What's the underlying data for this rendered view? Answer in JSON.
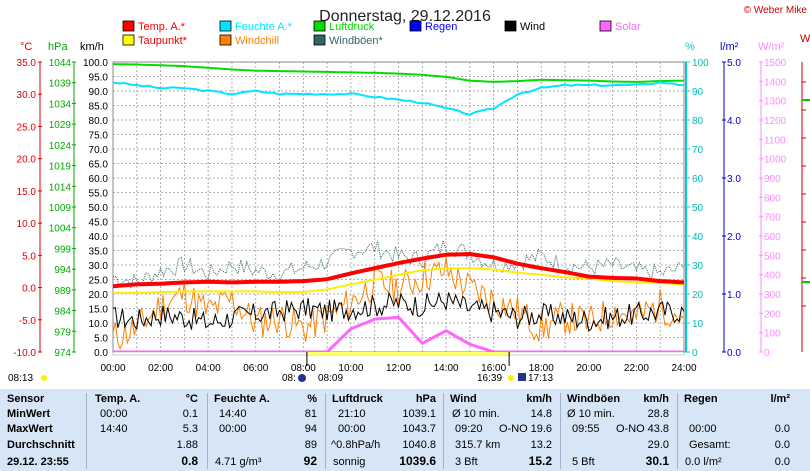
{
  "header": {
    "title": "Donnerstag, 29.12.2016",
    "credit": "© Weber Mike"
  },
  "legend": [
    {
      "label": "Temp. A.*",
      "color": "#ff0000"
    },
    {
      "label": "Feuchte A.*",
      "color": "#00e5ff"
    },
    {
      "label": "Luftdruck",
      "color": "#00dd00"
    },
    {
      "label": "Regen",
      "color": "#0000ff"
    },
    {
      "label": "Wind",
      "color": "#000000"
    },
    {
      "label": "Solar",
      "color": "#ff66ff"
    },
    {
      "label": "Taupunkt*",
      "color": "#ffff00"
    },
    {
      "label": "Windchill",
      "color": "#ff8000"
    },
    {
      "label": "Windböen*",
      "color": "#336666"
    }
  ],
  "units": {
    "temp": "°C",
    "pressure": "hPa",
    "wind": "km/h",
    "humidity": "%",
    "rain": "l/m²",
    "solar": "W/m²",
    "cut": "W"
  },
  "axes": {
    "temp_ticks": [
      "35.0",
      "30.0",
      "25.0",
      "20.0",
      "15.0",
      "10.0",
      "5.0",
      "0.0",
      "-5.0",
      "-10.0"
    ],
    "pressure_ticks": [
      "1044",
      "1039",
      "1034",
      "1029",
      "1024",
      "1019",
      "1014",
      "1009",
      "1004",
      "999",
      "994",
      "989",
      "984",
      "979",
      "974"
    ],
    "wind_ticks": [
      "100.0",
      "95.0",
      "90.0",
      "85.0",
      "80.0",
      "75.0",
      "70.0",
      "65.0",
      "60.0",
      "55.0",
      "50.0",
      "45.0",
      "40.0",
      "35.0",
      "30.0",
      "25.0",
      "20.0",
      "15.0",
      "10.0",
      "5.0",
      "0.0"
    ],
    "humidity_ticks": [
      "100",
      "90",
      "80",
      "70",
      "60",
      "50",
      "40",
      "30",
      "20",
      "10",
      "0"
    ],
    "rain_ticks": [
      "5.0",
      "4.0",
      "3.0",
      "2.0",
      "1.0",
      "0.0"
    ],
    "solar_ticks": [
      "1500",
      "1400",
      "1300",
      "1200",
      "1100",
      "1000",
      "900",
      "800",
      "700",
      "600",
      "500",
      "400",
      "300",
      "200",
      "100",
      "0"
    ],
    "time_ticks": [
      "00:00",
      "02:00",
      "04:00",
      "06:00",
      "08:00",
      "10:00",
      "12:00",
      "14:00",
      "16:00",
      "18:00",
      "20:00",
      "22:00",
      "24:00"
    ]
  },
  "sun": {
    "sunrise": "08:13",
    "sunset": "16:39",
    "moonrise": "08:09",
    "moonset": "17:13",
    "moonrise_prefix": "08:"
  },
  "chart_data": {
    "type": "line",
    "x_hours": [
      0,
      1,
      2,
      3,
      4,
      5,
      6,
      7,
      8,
      9,
      10,
      11,
      12,
      13,
      14,
      15,
      16,
      17,
      18,
      19,
      20,
      21,
      22,
      23,
      24
    ],
    "x_range": [
      0,
      24
    ],
    "series": [
      {
        "name": "Temp. A.*",
        "unit": "°C",
        "color": "#ff0000",
        "values": [
          0.2,
          0.5,
          0.6,
          0.8,
          0.9,
          0.8,
          0.9,
          0.9,
          1.0,
          1.3,
          2.2,
          3.0,
          3.8,
          4.5,
          5.1,
          5.2,
          4.7,
          3.7,
          3.0,
          2.4,
          1.7,
          1.5,
          1.4,
          1.0,
          0.8
        ]
      },
      {
        "name": "Taupunkt*",
        "unit": "°C",
        "color": "#ffff00",
        "values": [
          -0.8,
          -0.8,
          -0.7,
          -0.6,
          -0.6,
          -0.6,
          -0.6,
          -0.7,
          -0.7,
          -0.3,
          0.5,
          1.2,
          2.0,
          2.7,
          3.0,
          3.0,
          2.8,
          2.3,
          2.0,
          1.6,
          1.4,
          1.0,
          0.8,
          0.7,
          0.5
        ]
      },
      {
        "name": "Feuchte A.*",
        "unit": "%",
        "color": "#00e5ff",
        "values": [
          93,
          92,
          91,
          91,
          90,
          89,
          90,
          89,
          89,
          89,
          89,
          88,
          87,
          86,
          84,
          82,
          84,
          89,
          91,
          92,
          92,
          92,
          92,
          93,
          92
        ]
      },
      {
        "name": "Luftdruck",
        "unit": "hPa",
        "color": "#00dd00",
        "values": [
          1043.5,
          1043.4,
          1043.2,
          1043.0,
          1042.6,
          1042.2,
          1041.9,
          1041.8,
          1041.7,
          1041.6,
          1041.5,
          1041.4,
          1041.2,
          1040.9,
          1040.4,
          1039.5,
          1039.2,
          1039.4,
          1039.7,
          1039.6,
          1039.5,
          1039.3,
          1039.2,
          1039.4,
          1039.5
        ]
      },
      {
        "name": "Wind",
        "unit": "km/h",
        "color": "#000000",
        "values": [
          12,
          11,
          13,
          12,
          10,
          12,
          13,
          14,
          15,
          14,
          15,
          16,
          17,
          16,
          18,
          15,
          14,
          12,
          13,
          12,
          11,
          12,
          13,
          14,
          14
        ]
      },
      {
        "name": "Windchill",
        "unit": "km/h",
        "color": "#ff8000",
        "values": [
          5,
          8,
          16,
          20,
          14,
          18,
          10,
          12,
          8,
          12,
          17,
          24,
          22,
          26,
          28,
          22,
          18,
          14,
          8,
          12,
          10,
          14,
          12,
          16,
          12
        ]
      },
      {
        "name": "Windböen*",
        "unit": "km/h",
        "color": "#336666",
        "values": [
          26,
          24,
          28,
          30,
          27,
          30,
          28,
          27,
          29,
          31,
          35,
          36,
          33,
          32,
          37,
          34,
          30,
          31,
          33,
          30,
          29,
          30,
          28,
          27,
          29
        ]
      },
      {
        "name": "Solar",
        "unit": "W/m²",
        "color": "#ff66ff",
        "values": [
          0,
          0,
          0,
          0,
          0,
          0,
          0,
          0,
          0,
          0,
          120,
          170,
          180,
          45,
          110,
          40,
          0,
          0,
          0,
          0,
          0,
          0,
          0,
          0,
          0
        ]
      }
    ]
  },
  "table": {
    "headers": {
      "sensor": "Sensor",
      "temp": "Temp. A.",
      "temp_unit": "°C",
      "hum": "Feuchte A.",
      "hum_unit": "%",
      "press": "Luftdruck",
      "press_unit": "hPa",
      "wind": "Wind",
      "wind_unit": "km/h",
      "gust": "Windböen",
      "gust_unit": "km/h",
      "rain": "Regen",
      "rain_unit": "l/m²"
    },
    "rowlabels": {
      "min": "MinWert",
      "max": "MaxWert",
      "avg": "Durchschnitt",
      "cur": "29.12. 23:55"
    },
    "temp": {
      "min_time": "00:00",
      "min": "0.1",
      "max_time": "14:40",
      "max": "5.3",
      "avg": "1.88",
      "cur": "0.8"
    },
    "hum": {
      "min_time": "14:40",
      "min": "81",
      "max_time": "00:00",
      "max": "94",
      "avg": "89",
      "cur_abs": "4.71 g/m³",
      "cur": "92"
    },
    "press": {
      "min_time": "21:10",
      "min": "1039.1",
      "max_time": "00:00",
      "max": "1043.7",
      "trend": "^0.8hPa/h",
      "avg": "1040.8",
      "desc": "sonnig",
      "cur": "1039.6"
    },
    "wind": {
      "min_label": "Ø 10 min.",
      "min": "14.8",
      "max_time": "09:20",
      "max_dir": "O-NO",
      "max": "19.6",
      "avg_label": "315.7 km",
      "avg": "13.2",
      "bft": "3 Bft",
      "cur": "15.2"
    },
    "gust": {
      "min_label": "Ø 10 min.",
      "min": "28.8",
      "max_time": "09:55",
      "max_dir": "O-NO",
      "max": "43.8",
      "avg": "29.0",
      "bft": "5 Bft",
      "cur": "30.1"
    },
    "rain": {
      "max_time": "00:00",
      "max": "0.0",
      "avg_label": "Gesamt:",
      "avg": "0.0",
      "cur_label": "0.0 l/m²",
      "cur": "0.0"
    }
  }
}
